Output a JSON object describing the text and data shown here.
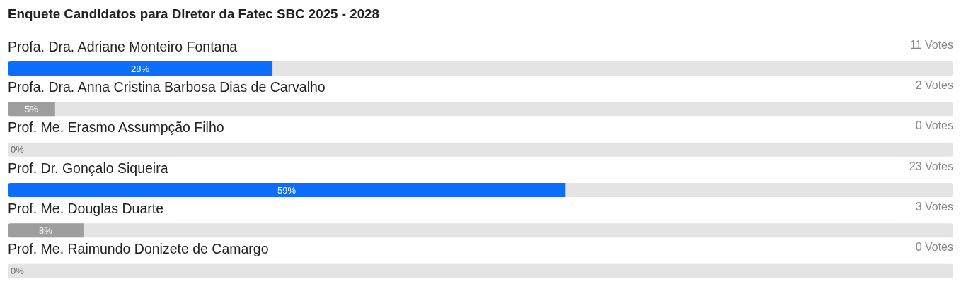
{
  "chart_data": {
    "type": "bar",
    "orientation": "horizontal",
    "title": "Enquete Candidatos para Diretor da Fatec SBC 2025 - 2028",
    "categories": [
      "Profa. Dra. Adriane Monteiro Fontana",
      "Profa. Dra. Anna Cristina Barbosa Dias de Carvalho",
      "Prof. Me. Erasmo Assumpção Filho",
      "Prof. Dr. Gonçalo Siqueira",
      "Prof. Me. Douglas Duarte",
      "Prof. Me. Raimundo Donizete de Camargo"
    ],
    "values": [
      28,
      5,
      0,
      59,
      8,
      0
    ],
    "colors": [
      "#0d6efd",
      "#9e9e9e",
      "#9e9e9e",
      "#0d6efd",
      "#9e9e9e",
      "#9e9e9e"
    ],
    "value_labels": [
      "28%",
      "5%",
      "0%",
      "59%",
      "8%",
      "0%"
    ],
    "annotations": [
      "11 Votes",
      "2 Votes",
      "0 Votes",
      "23 Votes",
      "3 Votes",
      "0 Votes"
    ],
    "xlim": [
      0,
      100
    ],
    "tick_labels": "y"
  }
}
